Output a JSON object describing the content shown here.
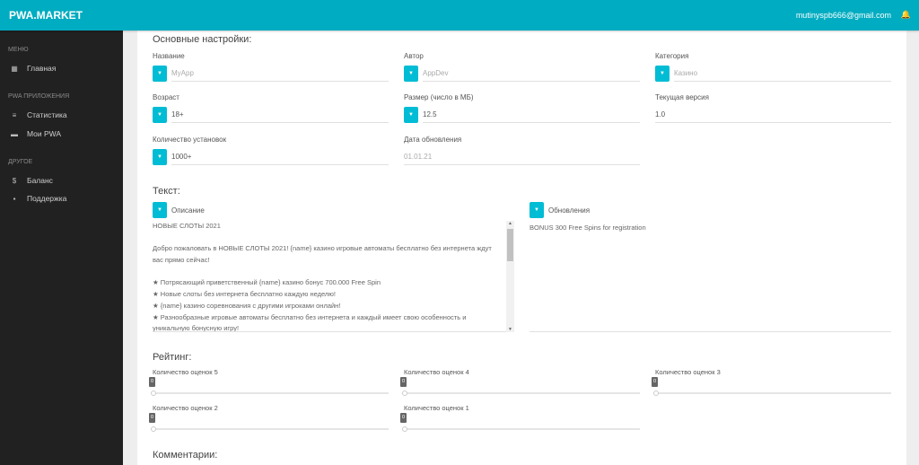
{
  "header": {
    "brand": "PWA.MARKET",
    "email": "mutinyspb666@gmail.com",
    "bell_icon": "bell-icon"
  },
  "colors": {
    "accent": "#00acc1",
    "sidebar": "#212121",
    "button": "#00bcd4"
  },
  "sidebar": {
    "sections": [
      {
        "title": "МЕНЮ",
        "items": [
          {
            "label": "Главная",
            "icon": "dashboard-icon"
          }
        ]
      },
      {
        "title": "PWA ПРИЛОЖЕНИЯ",
        "items": [
          {
            "label": "Статистика",
            "icon": "sort-icon"
          },
          {
            "label": "Мои PWA",
            "icon": "list-icon"
          }
        ]
      },
      {
        "title": "ДРУГОЕ",
        "items": [
          {
            "label": "Баланс",
            "icon": "dollar-icon"
          },
          {
            "label": "Поддержка",
            "icon": "chat-icon"
          }
        ]
      }
    ]
  },
  "basic": {
    "title": "Основные настройки:",
    "fields": [
      {
        "label": "Название",
        "value": "MyApp"
      },
      {
        "label": "Автор",
        "value": "AppDev"
      },
      {
        "label": "Категория",
        "value": "Казино"
      },
      {
        "label": "Возраст",
        "value": "18+"
      },
      {
        "label": "Размер (число в МБ)",
        "value": "12.5"
      },
      {
        "label": "Текущая версия",
        "value": "1.0"
      },
      {
        "label": "Количество установок",
        "value": "1000+"
      },
      {
        "label": "Дата обновления",
        "value": "01.01.21"
      }
    ]
  },
  "text": {
    "title": "Текст:",
    "description_label": "Описание",
    "description_lines": [
      "НОВЫЕ СЛОТЫ 2021",
      "",
      "Добро пожаловать в НОВЫЕ СЛОТЫ 2021! {name} казино игровые автоматы бесплатно без интернета ждут вас прямо сейчас!",
      "",
      "★ Потрясающий приветственный {name} казино бонус 700.000 Free Spin",
      "★ Новые слоты без интернета бесплатно каждую неделю!",
      "★ {name} казино соревнования с другими игроками онлайн!",
      "★ Разнообразные игровые автоматы бесплатно без интернета и каждый имеет свою особенность и уникальную бонусную игру!"
    ],
    "updates_label": "Обновления",
    "updates_value": "BONUS 300 Free Spins for registration"
  },
  "rating": {
    "title": "Рейтинг:",
    "sliders": [
      {
        "label": "Количество оценок 5",
        "value": "0"
      },
      {
        "label": "Количество оценок 4",
        "value": "0"
      },
      {
        "label": "Количество оценок 3",
        "value": "0"
      },
      {
        "label": "Количество оценок 2",
        "value": "0"
      },
      {
        "label": "Количество оценок 1",
        "value": "0"
      }
    ]
  },
  "comments": {
    "title": "Комментарии:"
  }
}
